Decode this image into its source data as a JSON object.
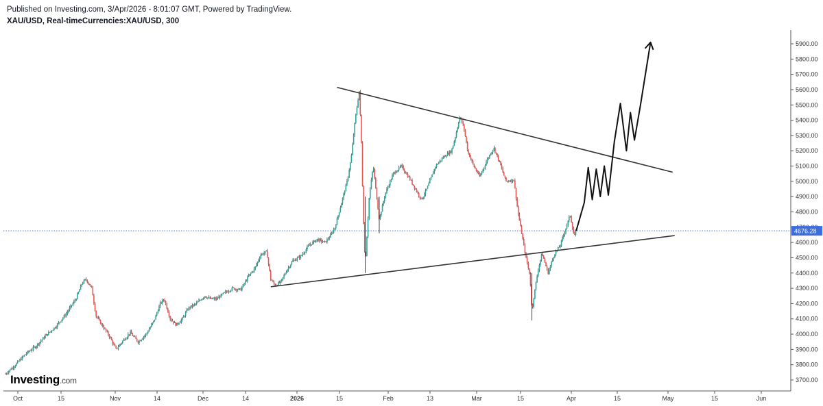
{
  "header": {
    "published": "Published on Investing.com, 3/Apr/2026 - 8:01:07 GMT, Powered by TradingView.",
    "symbol": "XAU/USD, Real-timeCurrencies:XAU/USD, 300"
  },
  "logo": {
    "brand": "Investing",
    "domain": ".com"
  },
  "chart_data": {
    "type": "candlestick",
    "ylim": [
      3640,
      5960
    ],
    "y_ticks": [
      "3700.00",
      "3800.00",
      "3900.00",
      "4000.00",
      "4100.00",
      "4200.00",
      "4300.00",
      "4400.00",
      "4500.00",
      "4600.00",
      "4700.00",
      "4800.00",
      "4900.00",
      "5000.00",
      "5100.00",
      "5200.00",
      "5300.00",
      "5400.00",
      "5500.00",
      "5600.00",
      "5700.00",
      "5800.00",
      "5900.00"
    ],
    "x_ticks": [
      {
        "label": "Oct",
        "bold": false
      },
      {
        "label": "15",
        "bold": false
      },
      {
        "label": "Nov",
        "bold": false
      },
      {
        "label": "14",
        "bold": false
      },
      {
        "label": "Dec",
        "bold": false
      },
      {
        "label": "14",
        "bold": false
      },
      {
        "label": "2026",
        "bold": true
      },
      {
        "label": "15",
        "bold": false
      },
      {
        "label": "Feb",
        "bold": false
      },
      {
        "label": "13",
        "bold": false
      },
      {
        "label": "Mar",
        "bold": false
      },
      {
        "label": "15",
        "bold": false
      },
      {
        "label": "Apr",
        "bold": false
      },
      {
        "label": "15",
        "bold": false
      },
      {
        "label": "May",
        "bold": false
      },
      {
        "label": "15",
        "bold": false
      },
      {
        "label": "Jun",
        "bold": false
      }
    ],
    "current_price": "4676.28",
    "price_path": [
      [
        0,
        3740
      ],
      [
        5,
        3800
      ],
      [
        10,
        3870
      ],
      [
        15,
        3920
      ],
      [
        20,
        3990
      ],
      [
        25,
        4050
      ],
      [
        30,
        4130
      ],
      [
        35,
        4230
      ],
      [
        38,
        4330
      ],
      [
        40,
        4360
      ],
      [
        43,
        4300
      ],
      [
        45,
        4120
      ],
      [
        48,
        4060
      ],
      [
        52,
        3980
      ],
      [
        55,
        3900
      ],
      [
        58,
        3950
      ],
      [
        62,
        4010
      ],
      [
        66,
        3950
      ],
      [
        70,
        4000
      ],
      [
        74,
        4090
      ],
      [
        77,
        4200
      ],
      [
        79,
        4230
      ],
      [
        82,
        4100
      ],
      [
        85,
        4060
      ],
      [
        88,
        4100
      ],
      [
        91,
        4170
      ],
      [
        95,
        4200
      ],
      [
        99,
        4250
      ],
      [
        102,
        4230
      ],
      [
        105,
        4230
      ],
      [
        109,
        4270
      ],
      [
        113,
        4300
      ],
      [
        117,
        4290
      ],
      [
        121,
        4380
      ],
      [
        124,
        4430
      ],
      [
        127,
        4520
      ],
      [
        130,
        4540
      ],
      [
        132,
        4360
      ],
      [
        134,
        4320
      ],
      [
        137,
        4340
      ],
      [
        140,
        4420
      ],
      [
        143,
        4480
      ],
      [
        147,
        4510
      ],
      [
        151,
        4580
      ],
      [
        155,
        4620
      ],
      [
        159,
        4600
      ],
      [
        162,
        4650
      ],
      [
        164,
        4700
      ],
      [
        167,
        4850
      ],
      [
        170,
        5000
      ],
      [
        172,
        5150
      ],
      [
        174,
        5400
      ],
      [
        176,
        5590
      ],
      [
        177,
        5300
      ],
      [
        178,
        4800
      ],
      [
        179,
        4450
      ],
      [
        181,
        4900
      ],
      [
        183,
        5100
      ],
      [
        186,
        4750
      ],
      [
        189,
        4920
      ],
      [
        193,
        5050
      ],
      [
        197,
        5100
      ],
      [
        201,
        5020
      ],
      [
        204,
        4950
      ],
      [
        207,
        4880
      ],
      [
        210,
        4960
      ],
      [
        214,
        5100
      ],
      [
        218,
        5160
      ],
      [
        222,
        5200
      ],
      [
        224,
        5300
      ],
      [
        226,
        5420
      ],
      [
        228,
        5360
      ],
      [
        230,
        5200
      ],
      [
        233,
        5100
      ],
      [
        236,
        5030
      ],
      [
        240,
        5150
      ],
      [
        243,
        5220
      ],
      [
        246,
        5120
      ],
      [
        249,
        5000
      ],
      [
        253,
        5010
      ],
      [
        255,
        4800
      ],
      [
        257,
        4650
      ],
      [
        259,
        4500
      ],
      [
        261,
        4380
      ],
      [
        262,
        4150
      ],
      [
        263,
        4250
      ],
      [
        265,
        4420
      ],
      [
        267,
        4530
      ],
      [
        270,
        4400
      ],
      [
        273,
        4520
      ],
      [
        276,
        4580
      ],
      [
        279,
        4700
      ],
      [
        281,
        4780
      ],
      [
        283,
        4640
      ],
      [
        284,
        4676
      ]
    ],
    "lines": [
      {
        "name": "upper-trendline",
        "points": [
          [
            165,
            5615
          ],
          [
            332,
            5060
          ]
        ]
      },
      {
        "name": "lower-trendline",
        "points": [
          [
            132,
            4310
          ],
          [
            333,
            4645
          ]
        ]
      }
    ],
    "projection": [
      [
        284,
        4676
      ],
      [
        288,
        4860
      ],
      [
        290,
        5090
      ],
      [
        292,
        4880
      ],
      [
        294,
        5080
      ],
      [
        296,
        4900
      ],
      [
        298,
        5100
      ],
      [
        300,
        4910
      ],
      [
        303,
        5260
      ],
      [
        306,
        5510
      ],
      [
        309,
        5200
      ],
      [
        311,
        5450
      ],
      [
        313,
        5270
      ],
      [
        316,
        5500
      ],
      [
        321,
        5910
      ]
    ],
    "projection_arrow_tip": [
      321,
      5910
    ],
    "date_axis_note": "x values in trading-day index from start; Oct ≈ day 3, Apr ≈ day 283"
  }
}
